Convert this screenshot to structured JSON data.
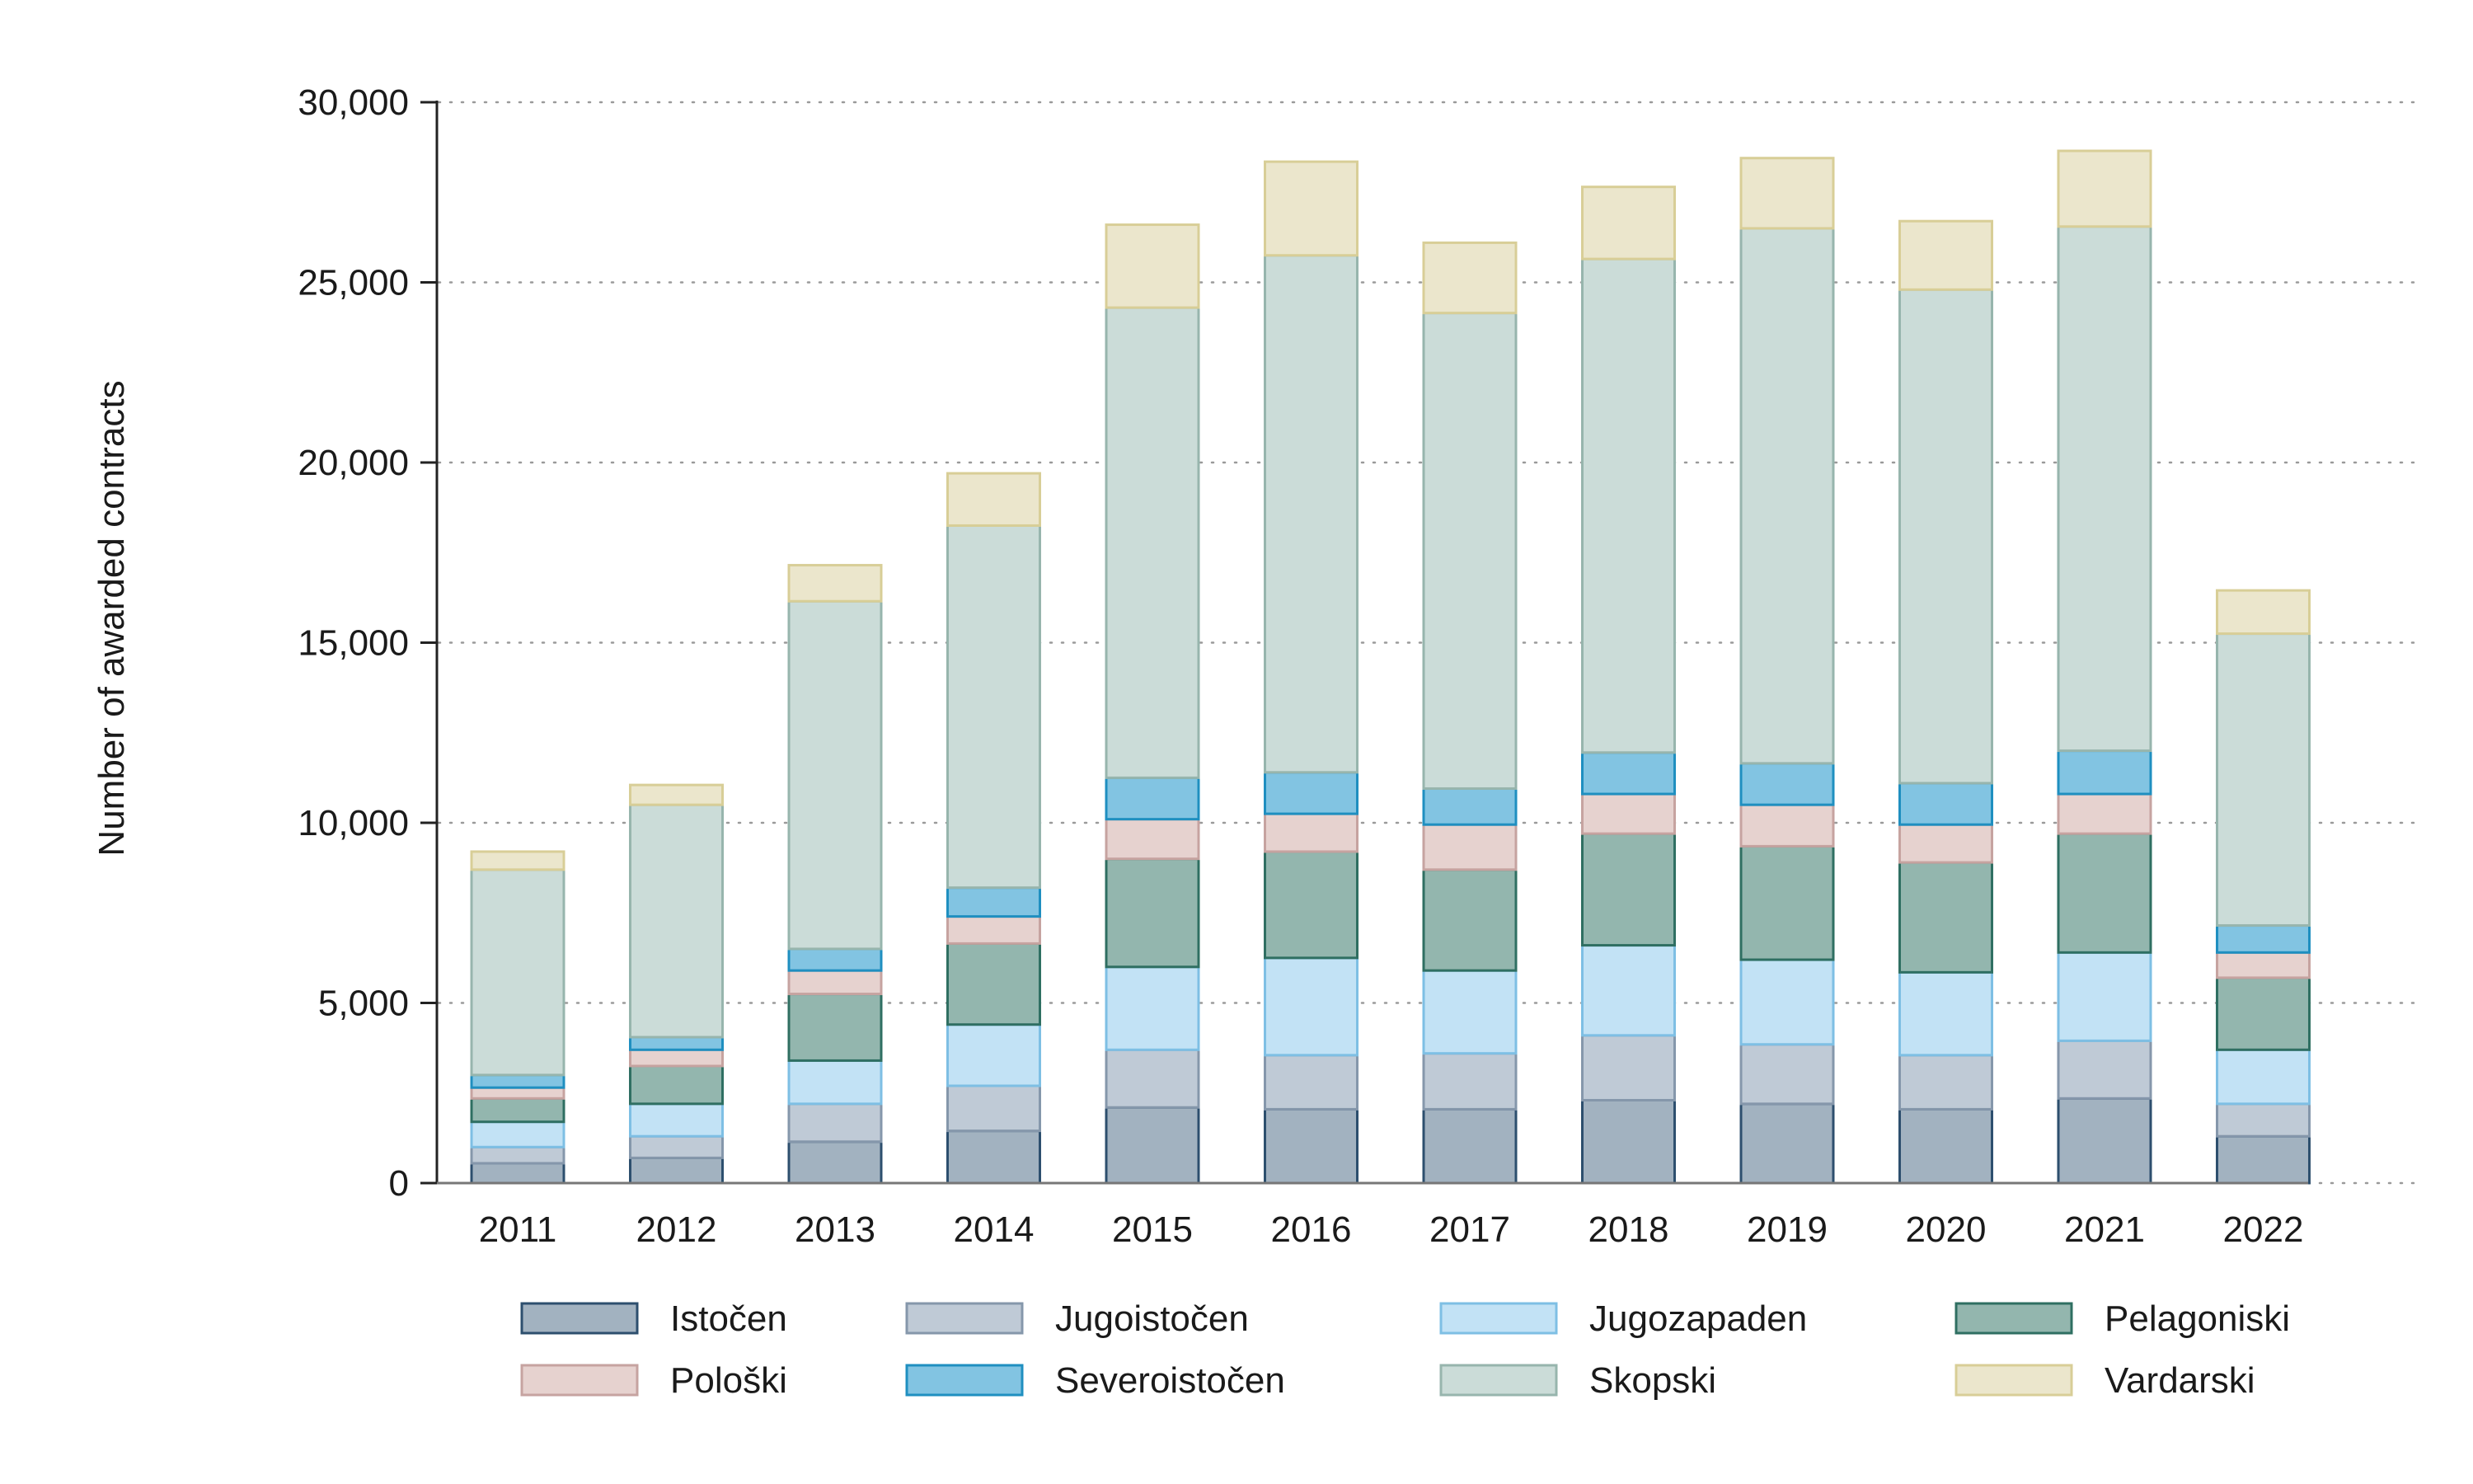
{
  "chart_data": {
    "type": "bar",
    "stacked": true,
    "title": "",
    "xlabel": "",
    "ylabel": "Number of awarded contracts",
    "ylim": [
      0,
      30000
    ],
    "yticks": [
      0,
      5000,
      10000,
      15000,
      20000,
      25000,
      30000
    ],
    "ytick_labels": [
      "0",
      "5,000",
      "10,000",
      "15,000",
      "20,000",
      "25,000",
      "30,000"
    ],
    "grid": "horizontal dotted",
    "legend_position": "bottom",
    "categories": [
      "2011",
      "2012",
      "2013",
      "2014",
      "2015",
      "2016",
      "2017",
      "2018",
      "2019",
      "2020",
      "2021",
      "2022"
    ],
    "series": [
      {
        "name": "Istočen",
        "fill": "#a2b2c0",
        "stroke": "#2d4f6e",
        "values": [
          550,
          700,
          1150,
          1450,
          2100,
          2050,
          2050,
          2300,
          2200,
          2050,
          2350,
          1300
        ]
      },
      {
        "name": "Jugoistočen",
        "fill": "#bfcad6",
        "stroke": "#8597ab",
        "values": [
          450,
          600,
          1050,
          1250,
          1600,
          1500,
          1550,
          1800,
          1650,
          1500,
          1600,
          900
        ]
      },
      {
        "name": "Jugozapaden",
        "fill": "#c2e2f5",
        "stroke": "#7ebfe4",
        "values": [
          700,
          900,
          1200,
          1700,
          2300,
          2700,
          2300,
          2500,
          2350,
          2300,
          2450,
          1500
        ]
      },
      {
        "name": "Pelagoniski",
        "fill": "#93b6ae",
        "stroke": "#2f6f62",
        "values": [
          650,
          1050,
          1850,
          2250,
          3000,
          2950,
          2800,
          3100,
          3150,
          3050,
          3300,
          2000
        ]
      },
      {
        "name": "Pološki",
        "fill": "#e6d2cf",
        "stroke": "#c6a3a0",
        "values": [
          300,
          450,
          650,
          750,
          1100,
          1050,
          1250,
          1100,
          1150,
          1050,
          1100,
          700
        ]
      },
      {
        "name": "Severoistočen",
        "fill": "#82c4e2",
        "stroke": "#1f8fc0",
        "values": [
          350,
          350,
          600,
          800,
          1150,
          1150,
          1000,
          1150,
          1150,
          1150,
          1200,
          750
        ]
      },
      {
        "name": "Skopski",
        "fill": "#cbdcd8",
        "stroke": "#97b5ad",
        "values": [
          5700,
          6450,
          9650,
          10050,
          13050,
          14350,
          13200,
          13700,
          14850,
          13700,
          14550,
          8100
        ]
      },
      {
        "name": "Vardarski",
        "fill": "#ebe6cc",
        "stroke": "#d8ce97",
        "values": [
          500,
          550,
          1000,
          1450,
          2300,
          2600,
          1950,
          2000,
          1950,
          1900,
          2100,
          1200
        ]
      }
    ]
  }
}
